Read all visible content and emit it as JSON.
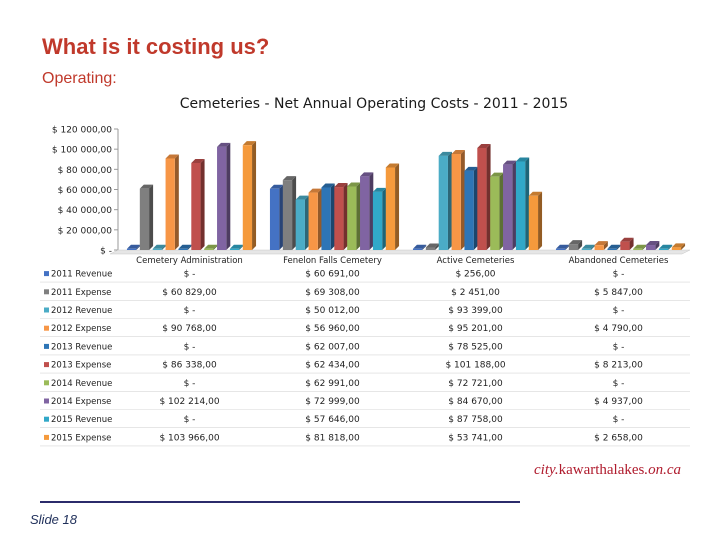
{
  "slide": {
    "title": "What is it costing us?",
    "section": "Operating:",
    "number_label": "Slide 18",
    "brand_prefix": "city.",
    "brand_name": "kawarthalakes",
    "brand_suffix": ".on.ca",
    "accent_color": "#c0392b"
  },
  "chart_data": {
    "type": "bar",
    "title": "Cemeteries - Net Annual Operating Costs - 2011 - 2015",
    "categories": [
      "Cemetery Administration",
      "Fenelon Falls Cemetery",
      "Active Cemeteries",
      "Abandoned Cemeteries"
    ],
    "ylim": [
      0,
      120000
    ],
    "yticks": [
      0,
      20000,
      40000,
      60000,
      80000,
      100000,
      120000
    ],
    "ytick_labels": [
      "$ -",
      "$ 20 000,00",
      "$ 40 000,00",
      "$ 60 000,00",
      "$ 80 000,00",
      "$ 100 000,00",
      "$ 120 000,00"
    ],
    "grid": false,
    "legend": "table-left",
    "series": [
      {
        "name": "2011 Revenue",
        "color": "#4472c4",
        "values": [
          0,
          60691,
          256,
          0
        ],
        "labels": [
          "$ -",
          "$ 60 691,00",
          "$ 256,00",
          "$ -"
        ]
      },
      {
        "name": "2011 Expense",
        "color": "#7f7f7f",
        "values": [
          60829,
          69308,
          2451,
          5847
        ],
        "labels": [
          "$ 60 829,00",
          "$ 69 308,00",
          "$ 2 451,00",
          "$ 5 847,00"
        ]
      },
      {
        "name": "2012 Revenue",
        "color": "#4bacc6",
        "values": [
          0,
          50012,
          93399,
          0
        ],
        "labels": [
          "$ -",
          "$ 50 012,00",
          "$ 93 399,00",
          "$ -"
        ]
      },
      {
        "name": "2012 Expense",
        "color": "#f79646",
        "values": [
          90768,
          56960,
          95201,
          4790
        ],
        "labels": [
          "$ 90 768,00",
          "$ 56 960,00",
          "$ 95 201,00",
          "$ 4 790,00"
        ]
      },
      {
        "name": "2013 Revenue",
        "color": "#2e75b6",
        "values": [
          0,
          62007,
          78525,
          0
        ],
        "labels": [
          "$ -",
          "$ 62 007,00",
          "$ 78 525,00",
          "$ -"
        ]
      },
      {
        "name": "2013 Expense",
        "color": "#c0504d",
        "values": [
          86338,
          62434,
          101188,
          8213
        ],
        "labels": [
          "$ 86 338,00",
          "$ 62 434,00",
          "$ 101 188,00",
          "$ 8 213,00"
        ]
      },
      {
        "name": "2014 Revenue",
        "color": "#9bbb59",
        "values": [
          0,
          62991,
          72721,
          0
        ],
        "labels": [
          "$ -",
          "$ 62 991,00",
          "$ 72 721,00",
          "$ -"
        ]
      },
      {
        "name": "2014 Expense",
        "color": "#8064a2",
        "values": [
          102214,
          72999,
          84670,
          4937
        ],
        "labels": [
          "$ 102 214,00",
          "$ 72 999,00",
          "$ 84 670,00",
          "$ 4 937,00"
        ]
      },
      {
        "name": "2015 Revenue",
        "color": "#31a8c8",
        "values": [
          0,
          57646,
          87758,
          0
        ],
        "labels": [
          "$ -",
          "$ 57 646,00",
          "$ 87 758,00",
          "$ -"
        ]
      },
      {
        "name": "2015 Expense",
        "color": "#f59a3c",
        "values": [
          103966,
          81818,
          53741,
          2658
        ],
        "labels": [
          "$ 103 966,00",
          "$ 81 818,00",
          "$ 53 741,00",
          "$ 2 658,00"
        ]
      }
    ]
  }
}
